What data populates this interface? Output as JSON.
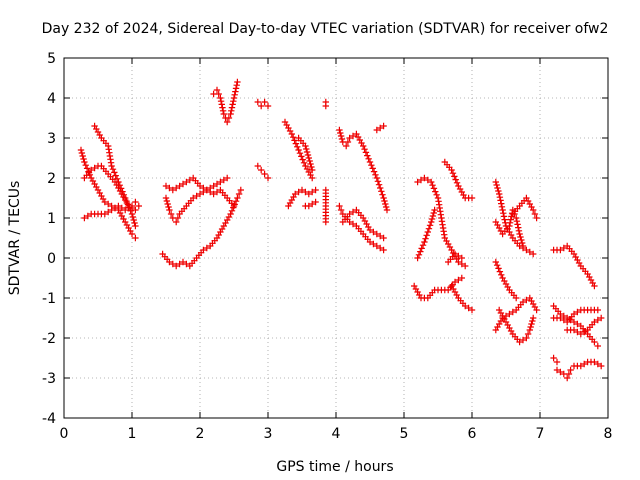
{
  "chart_data": {
    "type": "scatter",
    "title": "Day 232 of 2024, Sidereal Day-to-day VTEC variation (SDTVAR) for receiver ofw2",
    "xlabel": "GPS time / hours",
    "ylabel": "SDTVAR / TECUs",
    "xlim": [
      0,
      8
    ],
    "ylim": [
      -4,
      5
    ],
    "xticks": [
      "0",
      "1",
      "2",
      "3",
      "4",
      "5",
      "6",
      "7",
      "8"
    ],
    "yticks": [
      "-4",
      "-3",
      "-2",
      "-1",
      "0",
      "1",
      "2",
      "3",
      "4",
      "5"
    ],
    "grid": true,
    "marker": "plus",
    "color": "#ee0000",
    "tracks": [
      [
        [
          0.25,
          2.7
        ],
        [
          0.3,
          2.4
        ],
        [
          0.4,
          2.0
        ],
        [
          0.5,
          1.7
        ],
        [
          0.6,
          1.4
        ],
        [
          0.7,
          1.3
        ],
        [
          0.8,
          1.2
        ],
        [
          0.9,
          0.9
        ],
        [
          1.0,
          0.6
        ],
        [
          1.05,
          0.5
        ]
      ],
      [
        [
          0.3,
          1.0
        ],
        [
          0.4,
          1.1
        ],
        [
          0.5,
          1.1
        ],
        [
          0.6,
          1.1
        ],
        [
          0.7,
          1.2
        ],
        [
          0.8,
          1.3
        ],
        [
          0.9,
          1.2
        ],
        [
          1.0,
          1.3
        ],
        [
          1.05,
          1.4
        ],
        [
          1.1,
          1.3
        ]
      ],
      [
        [
          0.45,
          3.3
        ],
        [
          0.55,
          3.0
        ],
        [
          0.65,
          2.8
        ],
        [
          0.7,
          2.3
        ],
        [
          0.8,
          1.9
        ],
        [
          0.9,
          1.5
        ],
        [
          1.0,
          1.1
        ],
        [
          1.05,
          0.8
        ]
      ],
      [
        [
          0.3,
          2.0
        ],
        [
          0.4,
          2.2
        ],
        [
          0.5,
          2.3
        ],
        [
          0.55,
          2.3
        ],
        [
          0.65,
          2.1
        ],
        [
          0.75,
          1.9
        ],
        [
          0.85,
          1.6
        ],
        [
          0.95,
          1.3
        ],
        [
          1.05,
          1.2
        ]
      ],
      [
        [
          1.45,
          0.1
        ],
        [
          1.55,
          -0.1
        ],
        [
          1.65,
          -0.2
        ],
        [
          1.75,
          -0.1
        ],
        [
          1.85,
          -0.2
        ],
        [
          1.95,
          0.0
        ],
        [
          2.05,
          0.2
        ],
        [
          2.15,
          0.3
        ],
        [
          2.25,
          0.5
        ],
        [
          2.35,
          0.8
        ],
        [
          2.45,
          1.1
        ],
        [
          2.55,
          1.5
        ],
        [
          2.6,
          1.7
        ]
      ],
      [
        [
          1.5,
          1.5
        ],
        [
          1.55,
          1.2
        ],
        [
          1.6,
          1.0
        ],
        [
          1.65,
          0.9
        ],
        [
          1.7,
          1.1
        ],
        [
          1.8,
          1.3
        ],
        [
          1.9,
          1.5
        ],
        [
          2.0,
          1.6
        ],
        [
          2.1,
          1.7
        ],
        [
          2.2,
          1.8
        ],
        [
          2.3,
          1.9
        ],
        [
          2.4,
          2.0
        ]
      ],
      [
        [
          1.5,
          1.8
        ],
        [
          1.6,
          1.7
        ],
        [
          1.7,
          1.8
        ],
        [
          1.8,
          1.9
        ],
        [
          1.9,
          2.0
        ],
        [
          2.0,
          1.8
        ],
        [
          2.1,
          1.7
        ],
        [
          2.2,
          1.6
        ],
        [
          2.3,
          1.7
        ],
        [
          2.4,
          1.5
        ],
        [
          2.5,
          1.3
        ]
      ],
      [
        [
          2.2,
          4.1
        ],
        [
          2.25,
          4.2
        ],
        [
          2.3,
          4.0
        ],
        [
          2.35,
          3.6
        ],
        [
          2.4,
          3.4
        ],
        [
          2.45,
          3.6
        ],
        [
          2.5,
          4.0
        ],
        [
          2.55,
          4.4
        ]
      ],
      [
        [
          2.85,
          3.9
        ],
        [
          2.9,
          3.8
        ],
        [
          2.95,
          3.9
        ],
        [
          3.0,
          3.8
        ]
      ],
      [
        [
          2.85,
          2.3
        ],
        [
          2.9,
          2.2
        ],
        [
          2.95,
          2.1
        ],
        [
          3.0,
          2.0
        ]
      ],
      [
        [
          3.25,
          3.4
        ],
        [
          3.35,
          3.1
        ],
        [
          3.45,
          2.7
        ],
        [
          3.55,
          2.3
        ],
        [
          3.65,
          2.0
        ]
      ],
      [
        [
          3.3,
          1.3
        ],
        [
          3.4,
          1.6
        ],
        [
          3.5,
          1.7
        ],
        [
          3.6,
          1.6
        ],
        [
          3.7,
          1.7
        ]
      ],
      [
        [
          3.45,
          3.0
        ],
        [
          3.55,
          2.8
        ],
        [
          3.6,
          2.5
        ],
        [
          3.65,
          2.2
        ]
      ],
      [
        [
          3.55,
          1.3
        ],
        [
          3.6,
          1.3
        ],
        [
          3.7,
          1.4
        ]
      ],
      [
        [
          3.85,
          3.9
        ],
        [
          3.85,
          3.8
        ]
      ],
      [
        [
          3.85,
          1.7
        ],
        [
          3.85,
          1.3
        ],
        [
          3.85,
          0.9
        ]
      ],
      [
        [
          4.05,
          3.2
        ],
        [
          4.1,
          2.9
        ],
        [
          4.15,
          2.8
        ],
        [
          4.2,
          3.0
        ],
        [
          4.3,
          3.1
        ],
        [
          4.4,
          2.8
        ],
        [
          4.5,
          2.4
        ],
        [
          4.6,
          2.0
        ],
        [
          4.7,
          1.5
        ],
        [
          4.75,
          1.2
        ]
      ],
      [
        [
          4.05,
          1.3
        ],
        [
          4.1,
          1.1
        ],
        [
          4.2,
          0.9
        ],
        [
          4.3,
          0.8
        ],
        [
          4.4,
          0.6
        ],
        [
          4.5,
          0.4
        ],
        [
          4.6,
          0.3
        ],
        [
          4.7,
          0.2
        ]
      ],
      [
        [
          4.1,
          0.9
        ],
        [
          4.2,
          1.1
        ],
        [
          4.3,
          1.2
        ],
        [
          4.4,
          1.0
        ],
        [
          4.5,
          0.7
        ],
        [
          4.6,
          0.6
        ],
        [
          4.7,
          0.5
        ]
      ],
      [
        [
          4.6,
          3.2
        ],
        [
          4.7,
          3.3
        ]
      ],
      [
        [
          5.15,
          -0.7
        ],
        [
          5.25,
          -1.0
        ],
        [
          5.35,
          -1.0
        ],
        [
          5.45,
          -0.8
        ],
        [
          5.55,
          -0.8
        ],
        [
          5.65,
          -0.8
        ],
        [
          5.75,
          -0.6
        ],
        [
          5.85,
          -0.5
        ]
      ],
      [
        [
          5.2,
          1.9
        ],
        [
          5.3,
          2.0
        ],
        [
          5.4,
          1.9
        ],
        [
          5.5,
          1.5
        ],
        [
          5.55,
          1.0
        ],
        [
          5.6,
          0.5
        ],
        [
          5.7,
          0.2
        ],
        [
          5.8,
          -0.1
        ],
        [
          5.9,
          -0.2
        ]
      ],
      [
        [
          5.2,
          0.0
        ],
        [
          5.3,
          0.4
        ],
        [
          5.4,
          0.9
        ],
        [
          5.45,
          1.2
        ]
      ],
      [
        [
          5.6,
          2.4
        ],
        [
          5.7,
          2.2
        ],
        [
          5.8,
          1.8
        ],
        [
          5.9,
          1.5
        ],
        [
          6.0,
          1.5
        ]
      ],
      [
        [
          5.7,
          -0.7
        ],
        [
          5.8,
          -1.0
        ],
        [
          5.9,
          -1.2
        ],
        [
          6.0,
          -1.3
        ]
      ],
      [
        [
          5.65,
          -0.1
        ],
        [
          5.75,
          0.1
        ],
        [
          5.85,
          0.0
        ]
      ],
      [
        [
          6.35,
          1.9
        ],
        [
          6.4,
          1.6
        ],
        [
          6.45,
          1.2
        ],
        [
          6.5,
          0.8
        ],
        [
          6.6,
          0.5
        ],
        [
          6.7,
          0.3
        ],
        [
          6.8,
          0.2
        ],
        [
          6.9,
          0.1
        ]
      ],
      [
        [
          6.35,
          0.9
        ],
        [
          6.45,
          0.6
        ],
        [
          6.55,
          0.8
        ],
        [
          6.6,
          1.2
        ],
        [
          6.65,
          1.0
        ],
        [
          6.7,
          0.6
        ],
        [
          6.75,
          0.3
        ]
      ],
      [
        [
          6.6,
          1.1
        ],
        [
          6.7,
          1.3
        ],
        [
          6.8,
          1.5
        ],
        [
          6.9,
          1.2
        ],
        [
          6.95,
          1.0
        ]
      ],
      [
        [
          6.35,
          -1.8
        ],
        [
          6.45,
          -1.5
        ],
        [
          6.55,
          -1.4
        ],
        [
          6.65,
          -1.3
        ],
        [
          6.75,
          -1.1
        ],
        [
          6.85,
          -1.0
        ],
        [
          6.95,
          -1.3
        ]
      ],
      [
        [
          6.4,
          -1.3
        ],
        [
          6.5,
          -1.6
        ],
        [
          6.6,
          -1.9
        ],
        [
          6.7,
          -2.1
        ],
        [
          6.8,
          -2.0
        ],
        [
          6.85,
          -1.8
        ],
        [
          6.9,
          -1.5
        ]
      ],
      [
        [
          6.35,
          -0.1
        ],
        [
          6.45,
          -0.5
        ],
        [
          6.55,
          -0.8
        ],
        [
          6.65,
          -1.0
        ]
      ],
      [
        [
          7.2,
          0.2
        ],
        [
          7.3,
          0.2
        ],
        [
          7.4,
          0.3
        ],
        [
          7.5,
          0.1
        ],
        [
          7.6,
          -0.2
        ],
        [
          7.7,
          -0.4
        ],
        [
          7.8,
          -0.7
        ]
      ],
      [
        [
          7.2,
          -1.2
        ],
        [
          7.3,
          -1.4
        ],
        [
          7.4,
          -1.5
        ],
        [
          7.5,
          -1.6
        ],
        [
          7.6,
          -1.7
        ],
        [
          7.7,
          -1.9
        ],
        [
          7.8,
          -2.1
        ],
        [
          7.85,
          -2.2
        ]
      ],
      [
        [
          7.2,
          -1.5
        ],
        [
          7.3,
          -1.5
        ],
        [
          7.4,
          -1.6
        ],
        [
          7.5,
          -1.4
        ],
        [
          7.6,
          -1.3
        ],
        [
          7.7,
          -1.3
        ],
        [
          7.8,
          -1.3
        ],
        [
          7.85,
          -1.3
        ]
      ],
      [
        [
          7.25,
          -2.8
        ],
        [
          7.35,
          -2.9
        ],
        [
          7.4,
          -3.0
        ],
        [
          7.45,
          -2.8
        ],
        [
          7.5,
          -2.7
        ],
        [
          7.6,
          -2.7
        ],
        [
          7.7,
          -2.6
        ],
        [
          7.8,
          -2.6
        ],
        [
          7.9,
          -2.7
        ]
      ],
      [
        [
          7.2,
          -2.5
        ],
        [
          7.25,
          -2.6
        ]
      ],
      [
        [
          7.4,
          -1.8
        ],
        [
          7.5,
          -1.8
        ],
        [
          7.6,
          -1.9
        ],
        [
          7.7,
          -1.8
        ],
        [
          7.8,
          -1.6
        ],
        [
          7.9,
          -1.5
        ]
      ]
    ]
  }
}
